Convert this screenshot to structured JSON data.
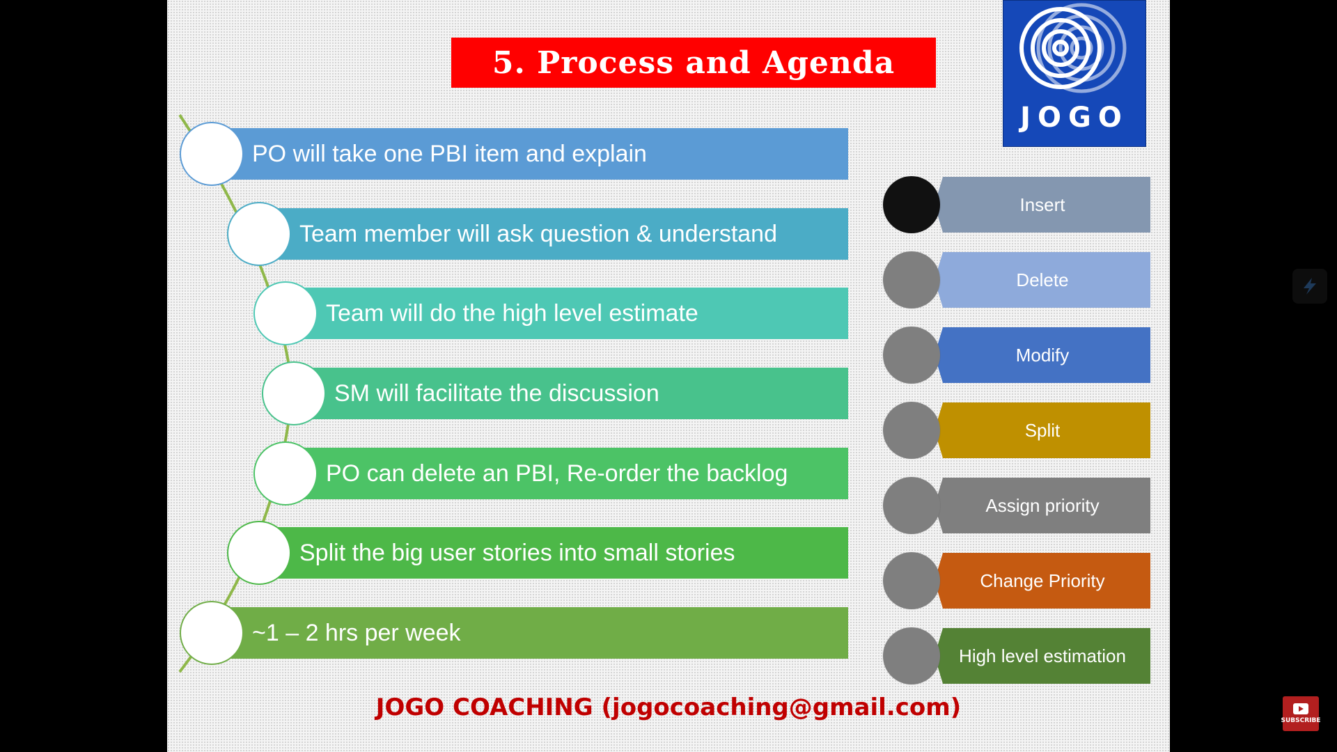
{
  "title": "5. Process and Agenda",
  "logo": {
    "text": "JOGO",
    "color": "#1548b8"
  },
  "steps": [
    {
      "label": "PO will take one PBI item and explain",
      "color": "#5b9bd5"
    },
    {
      "label": "Team member will ask question & understand",
      "color": "#4bacc6"
    },
    {
      "label": "Team will do the high level estimate",
      "color": "#4ec8b4"
    },
    {
      "label": "SM will facilitate the discussion",
      "color": "#48c28c"
    },
    {
      "label": "PO can delete an PBI, Re-order the backlog",
      "color": "#4cc366"
    },
    {
      "label": "Split the big user stories into small stories",
      "color": "#4db848"
    },
    {
      "label": "~1 – 2 hrs per week",
      "color": "#70ad47"
    }
  ],
  "actions": [
    {
      "label": "Insert",
      "color": "#8497b0",
      "dot": "#111111"
    },
    {
      "label": "Delete",
      "color": "#8eaadb",
      "dot": "#7f7f7f"
    },
    {
      "label": "Modify",
      "color": "#4472c4",
      "dot": "#7f7f7f"
    },
    {
      "label": "Split",
      "color": "#bf9000",
      "dot": "#7f7f7f"
    },
    {
      "label": "Assign priority",
      "color": "#7f7f7f",
      "dot": "#7f7f7f"
    },
    {
      "label": "Change Priority",
      "color": "#c55a11",
      "dot": "#7f7f7f"
    },
    {
      "label": "High level estimation",
      "color": "#548235",
      "dot": "#7f7f7f"
    }
  ],
  "footer": "JOGO COACHING (jogocoaching@gmail.com)",
  "subscribe_label": "SUBSCRIBE"
}
